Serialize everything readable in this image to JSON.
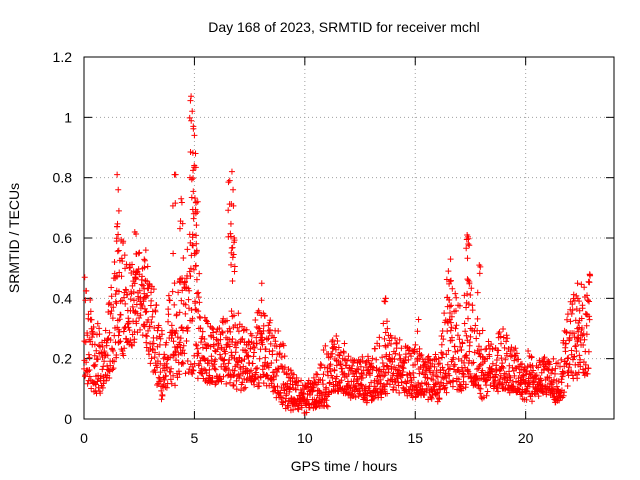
{
  "chart_data": {
    "type": "scatter",
    "title": "Day 168 of 2023, SRMTID for receiver mchl",
    "xlabel": "GPS time / hours",
    "ylabel": "SRMTID / TECUs",
    "xlim": [
      0,
      24
    ],
    "ylim": [
      0,
      1.2
    ],
    "xticks": [
      0,
      5,
      10,
      15,
      20
    ],
    "xtick_labels": [
      "0",
      "5",
      "10",
      "15",
      "20"
    ],
    "yticks": [
      0,
      0.2,
      0.4,
      0.6,
      0.8,
      1.0,
      1.2
    ],
    "ytick_labels": [
      "0",
      "0.2",
      "0.4",
      "0.6",
      "0.8",
      "1",
      "1.2"
    ],
    "grid": true,
    "marker": "+",
    "series": [
      {
        "name": "SRMTID",
        "color": "#ff0000",
        "envelope": {
          "description": "dense point cloud; typical [x, y_low, y_high] bands in data units",
          "bands": [
            [
              0.0,
              0.15,
              0.48
            ],
            [
              0.5,
              0.08,
              0.32
            ],
            [
              1.0,
              0.12,
              0.3
            ],
            [
              1.5,
              0.2,
              0.65
            ],
            [
              2.0,
              0.22,
              0.55
            ],
            [
              2.5,
              0.3,
              0.58
            ],
            [
              3.0,
              0.18,
              0.5
            ],
            [
              3.5,
              0.08,
              0.3
            ],
            [
              4.0,
              0.1,
              0.45
            ],
            [
              4.5,
              0.15,
              0.55
            ],
            [
              5.0,
              0.15,
              0.7
            ],
            [
              5.5,
              0.12,
              0.35
            ],
            [
              6.0,
              0.12,
              0.3
            ],
            [
              6.5,
              0.12,
              0.35
            ],
            [
              7.0,
              0.1,
              0.35
            ],
            [
              7.5,
              0.12,
              0.3
            ],
            [
              8.0,
              0.12,
              0.38
            ],
            [
              8.5,
              0.1,
              0.32
            ],
            [
              9.0,
              0.05,
              0.25
            ],
            [
              9.5,
              0.04,
              0.15
            ],
            [
              10.0,
              0.03,
              0.12
            ],
            [
              10.5,
              0.04,
              0.15
            ],
            [
              11.0,
              0.05,
              0.25
            ],
            [
              11.5,
              0.1,
              0.3
            ],
            [
              12.0,
              0.08,
              0.2
            ],
            [
              12.5,
              0.08,
              0.2
            ],
            [
              13.0,
              0.06,
              0.2
            ],
            [
              13.5,
              0.08,
              0.32
            ],
            [
              14.0,
              0.1,
              0.28
            ],
            [
              14.5,
              0.08,
              0.25
            ],
            [
              15.0,
              0.08,
              0.25
            ],
            [
              15.5,
              0.06,
              0.2
            ],
            [
              16.0,
              0.06,
              0.22
            ],
            [
              16.5,
              0.1,
              0.45
            ],
            [
              17.0,
              0.1,
              0.4
            ],
            [
              17.5,
              0.12,
              0.45
            ],
            [
              18.0,
              0.08,
              0.3
            ],
            [
              18.5,
              0.1,
              0.25
            ],
            [
              19.0,
              0.1,
              0.3
            ],
            [
              19.5,
              0.08,
              0.25
            ],
            [
              20.0,
              0.06,
              0.22
            ],
            [
              20.5,
              0.08,
              0.2
            ],
            [
              21.0,
              0.08,
              0.2
            ],
            [
              21.5,
              0.05,
              0.18
            ],
            [
              22.0,
              0.12,
              0.4
            ],
            [
              22.5,
              0.15,
              0.45
            ],
            [
              23.0,
              0.15,
              0.45
            ]
          ],
          "peaks": [
            [
              1.5,
              0.81
            ],
            [
              1.55,
              0.76
            ],
            [
              2.3,
              0.62
            ],
            [
              2.8,
              0.56
            ],
            [
              4.1,
              0.81
            ],
            [
              4.4,
              0.73
            ],
            [
              4.85,
              1.07
            ],
            [
              4.9,
              1.02
            ],
            [
              4.95,
              0.97
            ],
            [
              5.0,
              0.94
            ],
            [
              5.05,
              0.88
            ],
            [
              5.15,
              0.72
            ],
            [
              6.6,
              0.79
            ],
            [
              6.7,
              0.82
            ],
            [
              6.75,
              0.76
            ],
            [
              6.8,
              0.6
            ],
            [
              8.05,
              0.45
            ],
            [
              13.65,
              0.4
            ],
            [
              15.15,
              0.33
            ],
            [
              16.5,
              0.49
            ],
            [
              16.6,
              0.53
            ],
            [
              17.35,
              0.61
            ],
            [
              17.4,
              0.58
            ],
            [
              17.9,
              0.51
            ],
            [
              22.35,
              0.45
            ],
            [
              22.9,
              0.48
            ]
          ]
        }
      }
    ]
  }
}
